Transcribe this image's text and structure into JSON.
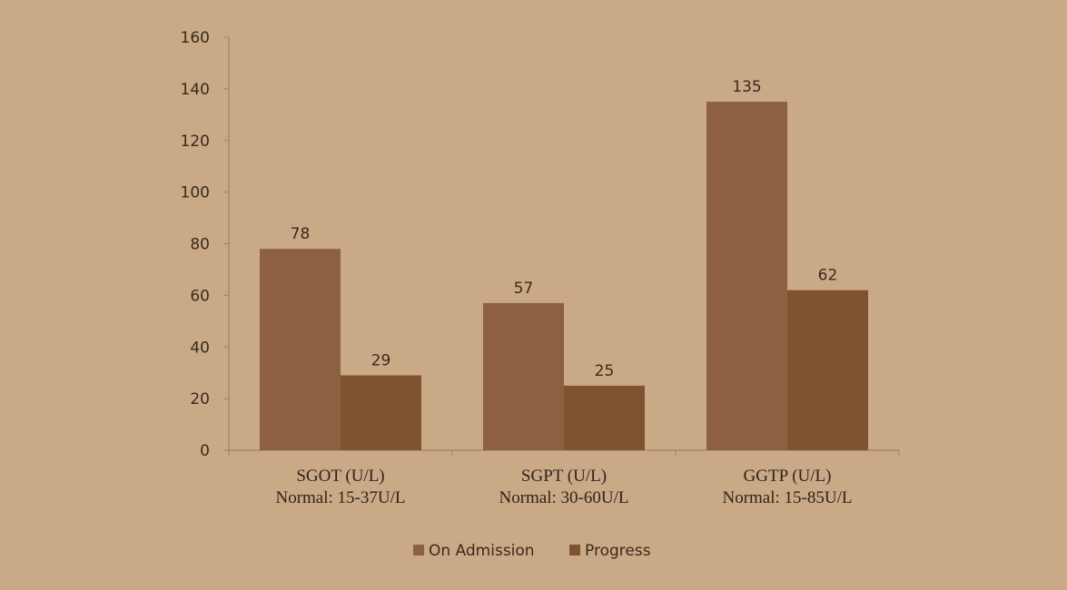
{
  "chart_data": {
    "type": "bar",
    "categories": [
      [
        "SGOT (U/L)",
        "Normal: 15-37U/L"
      ],
      [
        "SGPT (U/L)",
        "Normal: 30-60U/L"
      ],
      [
        "GGTP (U/L)",
        "Normal: 15-85U/L"
      ]
    ],
    "series": [
      {
        "name": "On Admission",
        "values": [
          78,
          57,
          135
        ],
        "color": "#8c6040"
      },
      {
        "name": "Progress",
        "values": [
          29,
          25,
          62
        ],
        "color": "#7f5230"
      }
    ],
    "ylim": [
      0,
      160
    ],
    "yticks": [
      0,
      20,
      40,
      60,
      80,
      100,
      120,
      140,
      160
    ],
    "grid": false,
    "legend": "bottom",
    "axis_color": "#a08265"
  }
}
